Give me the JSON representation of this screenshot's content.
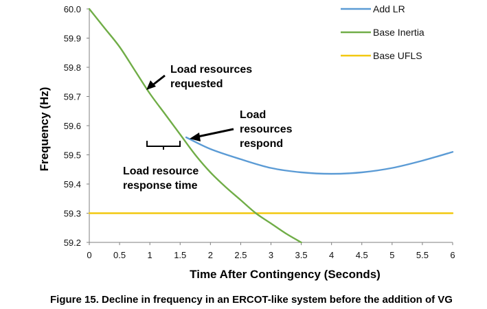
{
  "chart_data": {
    "type": "line",
    "title": "",
    "xlabel": "Time After Contingency (Seconds)",
    "ylabel": "Frequency (Hz)",
    "xlim": [
      0,
      6
    ],
    "ylim": [
      59.2,
      60.0
    ],
    "xticks": [
      "0",
      "0.5",
      "1",
      "1.5",
      "2",
      "2.5",
      "3",
      "3.5",
      "4",
      "4.5",
      "5",
      "5.5",
      "6"
    ],
    "yticks": [
      "60.0",
      "59.9",
      "59.8",
      "59.7",
      "59.6",
      "59.5",
      "59.4",
      "59.3",
      "59.2"
    ],
    "grid": false,
    "legend_position": "top-right",
    "series": [
      {
        "name": "Add LR",
        "color": "#5b9bd5",
        "x": [
          1.6,
          2.0,
          2.5,
          3.0,
          3.5,
          4.0,
          4.5,
          5.0,
          5.5,
          6.0
        ],
        "y": [
          59.56,
          59.52,
          59.485,
          59.455,
          59.44,
          59.435,
          59.44,
          59.455,
          59.48,
          59.51
        ]
      },
      {
        "name": "Base Inertia",
        "color": "#70ad47",
        "x": [
          0,
          0.25,
          0.5,
          0.75,
          1.0,
          1.25,
          1.5,
          1.75,
          2.0,
          2.25,
          2.5,
          2.75,
          3.0,
          3.25,
          3.5
        ],
        "y": [
          60.0,
          59.935,
          59.87,
          59.79,
          59.71,
          59.64,
          59.57,
          59.5,
          59.44,
          59.39,
          59.345,
          59.3,
          59.265,
          59.23,
          59.2
        ]
      },
      {
        "name": "Base UFLS",
        "color": "#f2c80f",
        "x": [
          0,
          6
        ],
        "y": [
          59.3,
          59.3
        ]
      }
    ],
    "annotations": {
      "requested_line1": "Load resources",
      "requested_line2": "requested",
      "respond_line1": "Load",
      "respond_line2": "resources",
      "respond_line3": "respond",
      "response_time_line1": "Load resource",
      "response_time_line2": "response time"
    }
  },
  "caption": "Figure 15. Decline in frequency in an ERCOT-like system before the addition of VG"
}
